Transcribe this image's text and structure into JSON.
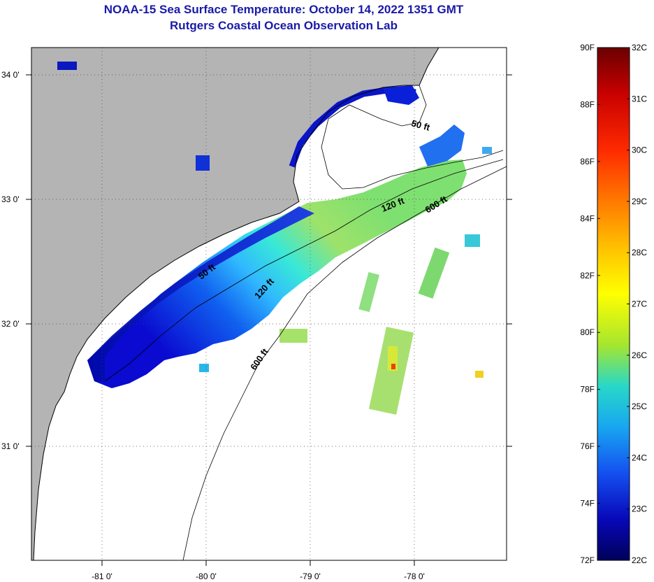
{
  "header": {
    "title_line1": "NOAA-15 Sea Surface Temperature:  October 14, 2022 1351 GMT",
    "title_line2": "Rutgers Coastal Ocean Observation Lab"
  },
  "map": {
    "lat_labels": [
      "34 0'",
      "33 0'",
      "32 0'",
      "31 0'"
    ],
    "lon_labels": [
      "-81 0'",
      "-80 0'",
      "-79 0'",
      "-78 0'"
    ],
    "isobath_labels": [
      "50 ft",
      "120 ft",
      "600 ft",
      "50 ft",
      "120 ft",
      "600 ft"
    ],
    "colors": {
      "land": "#b4b4b4",
      "cloud": "#ffffff",
      "coast": "#000000"
    }
  },
  "colorbar": {
    "fahrenheit_labels": [
      "90F",
      "88F",
      "86F",
      "84F",
      "82F",
      "80F",
      "78F",
      "76F",
      "74F",
      "72F"
    ],
    "celsius_labels": [
      "32C",
      "31C",
      "30C",
      "29C",
      "28C",
      "27C",
      "26C",
      "25C",
      "24C",
      "23C",
      "22C"
    ],
    "range_f": [
      72,
      90
    ],
    "range_c": [
      22,
      32
    ],
    "gradient": [
      "#6b0000",
      "#c80000",
      "#ff2a00",
      "#ff7a00",
      "#ffc800",
      "#ffff00",
      "#a6e62e",
      "#28d8c8",
      "#18a6f0",
      "#1450f0",
      "#0808b8",
      "#00005a"
    ]
  }
}
